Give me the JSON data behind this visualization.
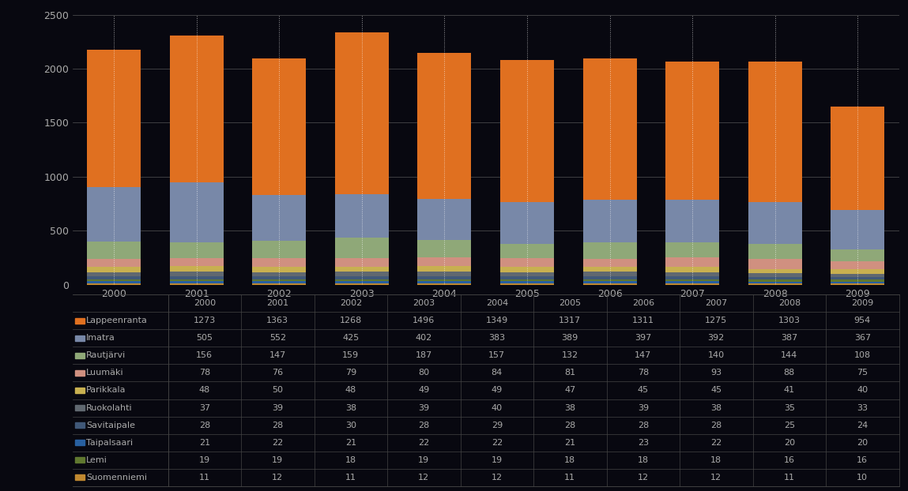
{
  "years": [
    2000,
    2001,
    2002,
    2003,
    2004,
    2005,
    2006,
    2007,
    2008,
    2009
  ],
  "series": [
    {
      "label": "Suomenniemi",
      "color": "#C08830",
      "values": [
        11,
        12,
        11,
        12,
        12,
        11,
        12,
        12,
        11,
        10
      ]
    },
    {
      "label": "Taipalsaari",
      "color": "#2860A0",
      "values": [
        21,
        22,
        21,
        22,
        22,
        21,
        23,
        22,
        20,
        20
      ]
    },
    {
      "label": "Lemi",
      "color": "#607830",
      "values": [
        19,
        19,
        18,
        19,
        19,
        18,
        18,
        18,
        16,
        16
      ]
    },
    {
      "label": "Savitaipale",
      "color": "#405878",
      "values": [
        28,
        28,
        30,
        28,
        29,
        28,
        28,
        28,
        25,
        24
      ]
    },
    {
      "label": "Ruokolahti",
      "color": "#606870",
      "values": [
        37,
        39,
        38,
        39,
        40,
        38,
        39,
        38,
        35,
        33
      ]
    },
    {
      "label": "Parikkala",
      "color": "#C8B050",
      "values": [
        48,
        50,
        48,
        49,
        49,
        47,
        45,
        45,
        41,
        40
      ]
    },
    {
      "label": "Luumäki",
      "color": "#D09080",
      "values": [
        78,
        76,
        79,
        80,
        84,
        81,
        78,
        93,
        88,
        75
      ]
    },
    {
      "label": "Rautjärvi",
      "color": "#8FA878",
      "values": [
        156,
        147,
        159,
        187,
        157,
        132,
        147,
        140,
        144,
        108
      ]
    },
    {
      "label": "Imatra",
      "color": "#7888A8",
      "values": [
        505,
        552,
        425,
        402,
        383,
        389,
        397,
        392,
        387,
        367
      ]
    },
    {
      "label": "Lappeenranta",
      "color": "#E07020",
      "values": [
        1273,
        1363,
        1268,
        1496,
        1349,
        1317,
        1311,
        1275,
        1303,
        954
      ]
    }
  ],
  "legend_order": [
    {
      "label": "Lappeenranta",
      "color": "#E07020"
    },
    {
      "label": "Imatra",
      "color": "#7888A8"
    },
    {
      "label": "Rautjärvi",
      "color": "#8FA878"
    },
    {
      "label": "Luumäki",
      "color": "#D09080"
    },
    {
      "label": "Parikkala",
      "color": "#C8B050"
    },
    {
      "label": "Ruokolahti",
      "color": "#606870"
    },
    {
      "label": "Savitaipale",
      "color": "#405878"
    },
    {
      "label": "Taipalsaari",
      "color": "#2860A0"
    },
    {
      "label": "Lemi",
      "color": "#607830"
    },
    {
      "label": "Suomenniemi",
      "color": "#C08830"
    }
  ],
  "table_rows": [
    {
      "label": "Lappeenranta",
      "color": "#E07020",
      "values": [
        1273,
        1363,
        1268,
        1496,
        1349,
        1317,
        1311,
        1275,
        1303,
        954
      ]
    },
    {
      "label": "Imatra",
      "color": "#7888A8",
      "values": [
        505,
        552,
        425,
        402,
        383,
        389,
        397,
        392,
        387,
        367
      ]
    },
    {
      "label": "Rautjärvi",
      "color": "#8FA878",
      "values": [
        156,
        147,
        159,
        187,
        157,
        132,
        147,
        140,
        144,
        108
      ]
    },
    {
      "label": "Luumäki",
      "color": "#D09080",
      "values": [
        78,
        76,
        79,
        80,
        84,
        81,
        78,
        93,
        88,
        75
      ]
    },
    {
      "label": "Parikkala",
      "color": "#C8B050",
      "values": [
        48,
        50,
        48,
        49,
        49,
        47,
        45,
        45,
        41,
        40
      ]
    },
    {
      "label": "Ruokolahti",
      "color": "#606870",
      "values": [
        37,
        39,
        38,
        39,
        40,
        38,
        39,
        38,
        35,
        33
      ]
    },
    {
      "label": "Savitaipale",
      "color": "#405878",
      "values": [
        28,
        28,
        30,
        28,
        29,
        28,
        28,
        28,
        25,
        24
      ]
    },
    {
      "label": "Taipalsaari",
      "color": "#2860A0",
      "values": [
        21,
        22,
        21,
        22,
        22,
        21,
        23,
        22,
        20,
        20
      ]
    },
    {
      "label": "Lemi",
      "color": "#607830",
      "values": [
        19,
        19,
        18,
        19,
        19,
        18,
        18,
        18,
        16,
        16
      ]
    },
    {
      "label": "Suomenniemi",
      "color": "#C08830",
      "values": [
        11,
        12,
        11,
        12,
        12,
        11,
        12,
        12,
        11,
        10
      ]
    }
  ],
  "ylim": [
    0,
    2500
  ],
  "yticks": [
    0,
    500,
    1000,
    1500,
    2000,
    2500
  ],
  "bg_color": "#080810",
  "bar_width": 0.65,
  "text_color": "#aaaaaa",
  "tick_fontsize": 9,
  "table_fontsize": 8
}
